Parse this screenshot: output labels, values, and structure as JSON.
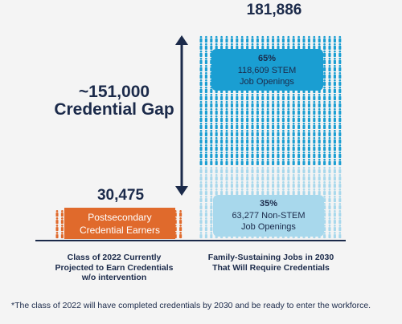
{
  "chart_data": {
    "type": "bar",
    "categories": [
      "Class of 2022 Currently Projected to Earn Credentials w/o intervention",
      "Family-Sustaining Jobs in 2030 That Will Require Credentials"
    ],
    "values": [
      30475,
      181886
    ],
    "value_labels": [
      "30,475",
      "181,886"
    ],
    "segments": [
      {
        "bar": 0,
        "label": "Postsecondary Credential Earners",
        "value": 30475,
        "color": "#e06a2c"
      },
      {
        "bar": 1,
        "pct": "35%",
        "line1": "63,277 Non-STEM",
        "line2": "Job Openings",
        "value": 63277,
        "color": "#a8d8ec"
      },
      {
        "bar": 1,
        "pct": "65%",
        "line1": "118,609 STEM",
        "line2": "Job Openings",
        "value": 118609,
        "color": "#1a9ed2"
      }
    ],
    "gap": {
      "line1": "~151,000",
      "line2": "Credential Gap",
      "value": 151000
    },
    "category_label_lines": [
      [
        "Class of 2022 Currently",
        "Projected to Earn Credentials",
        "w/o intervention"
      ],
      [
        "Family-Sustaining Jobs in 2030",
        "That Will Require Credentials"
      ]
    ],
    "footnote": "*The class of 2022 will have completed credentials by 2030 and be ready to enter the workforce."
  },
  "colors": {
    "navy": "#1b2a4a",
    "orange": "#e06a2c",
    "stem": "#1a9ed2",
    "nonstem": "#a8d8ec"
  },
  "icon": "person-icon"
}
